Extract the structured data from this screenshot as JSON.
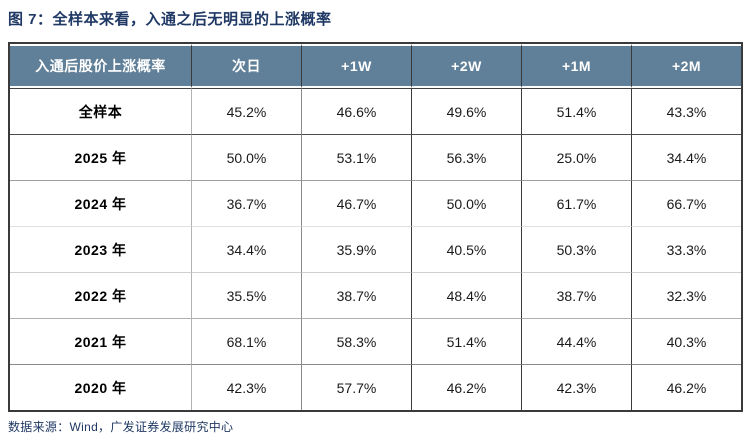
{
  "title": "图 7：全样本来看，入通之后无明显的上涨概率",
  "table": {
    "columns": [
      "入通后股价上涨概率",
      "次日",
      "+1W",
      "+2W",
      "+1M",
      "+2M"
    ],
    "rows": [
      {
        "label": "全样本",
        "values": [
          "45.2%",
          "46.6%",
          "49.6%",
          "51.4%",
          "43.3%"
        ]
      },
      {
        "label": "2025 年",
        "values": [
          "50.0%",
          "53.1%",
          "56.3%",
          "25.0%",
          "34.4%"
        ]
      },
      {
        "label": "2024 年",
        "values": [
          "36.7%",
          "46.7%",
          "50.0%",
          "61.7%",
          "66.7%"
        ]
      },
      {
        "label": "2023 年",
        "values": [
          "34.4%",
          "35.9%",
          "40.5%",
          "50.3%",
          "33.3%"
        ]
      },
      {
        "label": "2022 年",
        "values": [
          "35.5%",
          "38.7%",
          "48.4%",
          "38.7%",
          "32.3%"
        ]
      },
      {
        "label": "2021 年",
        "values": [
          "68.1%",
          "58.3%",
          "51.4%",
          "44.4%",
          "40.3%"
        ]
      },
      {
        "label": "2020 年",
        "values": [
          "42.3%",
          "57.7%",
          "46.2%",
          "42.3%",
          "46.2%"
        ]
      }
    ]
  },
  "source": "数据来源：Wind，广发证券发展研究中心",
  "colors": {
    "title": "#1F3864",
    "header_bg": "#607F98",
    "header_text": "#ffffff",
    "border_dark": "#3a3a3a",
    "source_text": "#1F3864"
  }
}
